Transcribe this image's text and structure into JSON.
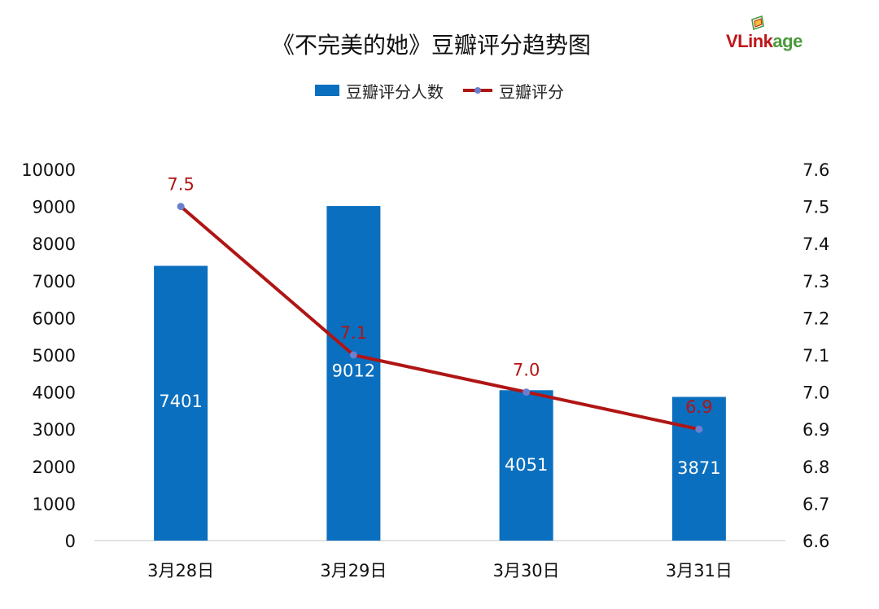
{
  "chart_data": {
    "type": "bar+line",
    "title": "《不完美的她》豆瓣评分趋势图",
    "categories": [
      "3月28日",
      "3月29日",
      "3月30日",
      "3月31日"
    ],
    "series": [
      {
        "name": "豆瓣评分人数",
        "type": "bar",
        "axis": "left",
        "values": [
          7401,
          9012,
          4051,
          3871
        ]
      },
      {
        "name": "豆瓣评分",
        "type": "line",
        "axis": "right",
        "values": [
          7.5,
          7.1,
          7.0,
          6.9
        ],
        "value_labels": [
          "7.5",
          "7.1",
          "7.0",
          "6.9"
        ]
      }
    ],
    "left_axis": {
      "min": 0,
      "max": 10000,
      "step": 1000,
      "ticks": [
        "0",
        "1000",
        "2000",
        "3000",
        "4000",
        "5000",
        "6000",
        "7000",
        "8000",
        "9000",
        "10000"
      ]
    },
    "right_axis": {
      "min": 6.6,
      "max": 7.6,
      "step": 0.1,
      "ticks": [
        "6.6",
        "6.7",
        "6.8",
        "6.9",
        "7.0",
        "7.1",
        "7.2",
        "7.3",
        "7.4",
        "7.5",
        "7.6"
      ]
    },
    "legend_position": "top-center",
    "grid": false
  },
  "legend": {
    "bar_label": "豆瓣评分人数",
    "line_label": "豆瓣评分"
  },
  "logo": {
    "v_part": "VLink",
    "rest_part": "age"
  },
  "colors": {
    "bar": "#0a6fbf",
    "line": "#b01515",
    "marker": "#6a7fcf",
    "label_red": "#b01515",
    "logo_red": "#c0151a",
    "logo_green": "#4a9a3a"
  }
}
